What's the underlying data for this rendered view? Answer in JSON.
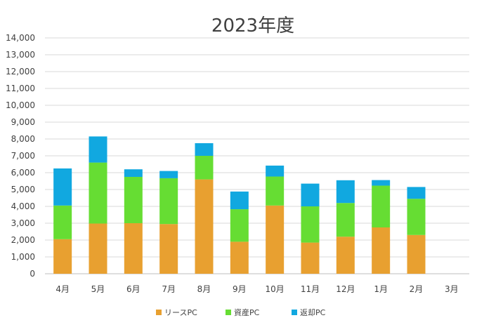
{
  "chart_data": {
    "type": "bar",
    "stacked": true,
    "title": "2023年度",
    "categories": [
      "4月",
      "5月",
      "6月",
      "7月",
      "8月",
      "9月",
      "10月",
      "11月",
      "12月",
      "1月",
      "2月",
      "3月"
    ],
    "series": [
      {
        "name": "リースPC",
        "color": "#E8A030",
        "values": [
          2050,
          2980,
          3000,
          2950,
          5600,
          1900,
          4050,
          1850,
          2200,
          2750,
          2300,
          0
        ]
      },
      {
        "name": "資産PC",
        "color": "#66DD33",
        "values": [
          2000,
          3620,
          2750,
          2720,
          1400,
          1930,
          1720,
          2150,
          2000,
          2480,
          2150,
          0
        ]
      },
      {
        "name": "返却PC",
        "color": "#11A8E0",
        "values": [
          2200,
          1550,
          450,
          430,
          750,
          1050,
          650,
          1350,
          1350,
          330,
          700,
          0
        ]
      }
    ],
    "ylim": [
      0,
      14000
    ],
    "y_ticks": [
      "0",
      "1,000",
      "2,000",
      "3,000",
      "4,000",
      "5,000",
      "6,000",
      "7,000",
      "8,000",
      "9,000",
      "10,000",
      "11,000",
      "12,000",
      "13,000",
      "14,000"
    ],
    "grid": true,
    "legend_position": "bottom"
  }
}
